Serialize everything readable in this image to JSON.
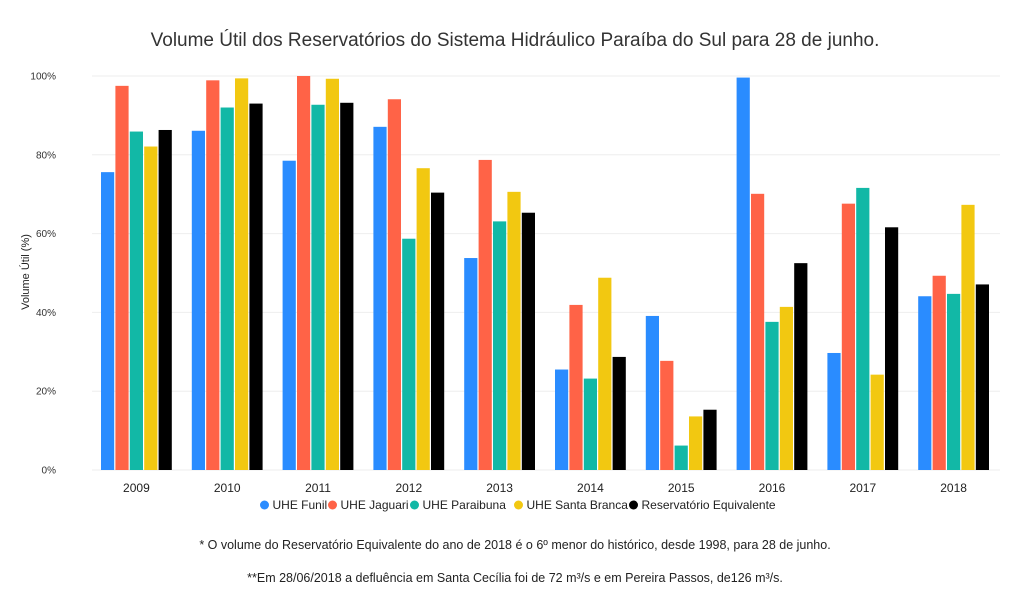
{
  "chart_data": {
    "type": "bar",
    "title": "Volume Útil dos Reservatórios do Sistema Hidráulico Paraíba do Sul para 28 de junho.",
    "xlabel": "",
    "ylabel": "Volume Útil (%)",
    "ylim": [
      0,
      100
    ],
    "yticks": [
      "0%",
      "20%",
      "40%",
      "60%",
      "80%",
      "100%"
    ],
    "ytick_values": [
      0,
      20,
      40,
      60,
      80,
      100
    ],
    "grid": true,
    "legend_position": "bottom",
    "categories": [
      "2009",
      "2010",
      "2011",
      "2012",
      "2013",
      "2014",
      "2015",
      "2016",
      "2017",
      "2018"
    ],
    "series": [
      {
        "name": "UHE Funil",
        "color": "#2a8cff",
        "values": [
          75.6,
          86.1,
          78.5,
          87.1,
          53.8,
          25.5,
          39.1,
          99.6,
          29.7,
          44.1
        ]
      },
      {
        "name": "UHE Jaguari",
        "color": "#ff6347",
        "values": [
          97.5,
          98.9,
          100.0,
          94.1,
          78.7,
          41.9,
          27.7,
          70.1,
          67.6,
          49.3
        ]
      },
      {
        "name": "UHE Paraibuna",
        "color": "#12b8a6",
        "values": [
          85.9,
          92.0,
          92.7,
          58.7,
          63.1,
          23.2,
          6.2,
          37.6,
          71.6,
          44.7
        ]
      },
      {
        "name": "UHE Santa Branca",
        "color": "#f2c811",
        "values": [
          82.1,
          99.4,
          99.3,
          76.6,
          70.6,
          48.8,
          13.6,
          41.4,
          24.2,
          67.3
        ]
      },
      {
        "name": "Reservatório Equivalente",
        "color": "#000000",
        "values": [
          86.3,
          93.0,
          93.2,
          70.4,
          65.3,
          28.7,
          15.3,
          52.5,
          61.6,
          47.1
        ]
      }
    ],
    "footnotes": [
      "* O volume do Reservatório Equivalente do ano de 2018 é o 6º menor do histórico, desde 1998, para 28 de junho.",
      "**Em 28/06/2018 a defluência em Santa Cecília foi de 72 m³/s e em Pereira Passos, de126 m³/s."
    ]
  }
}
